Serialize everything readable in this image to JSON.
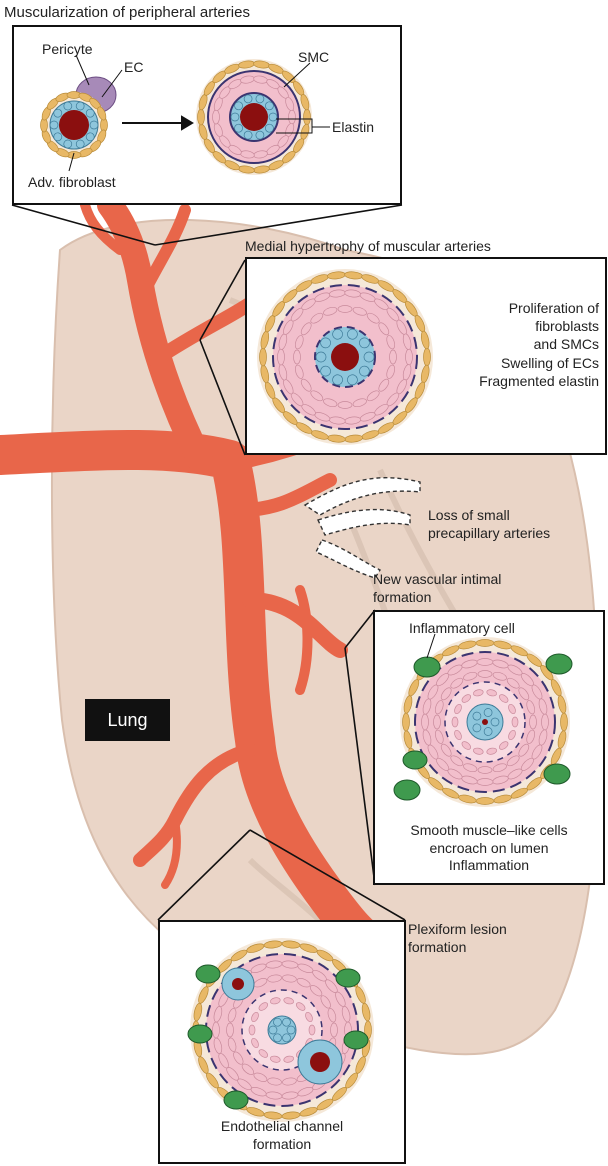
{
  "title": "Muscularization of peripheral arteries",
  "panel1": {
    "pericyte_label": "Pericyte",
    "ec_label": "EC",
    "fibroblast_label": "Adv. fibroblast",
    "smc_label": "SMC",
    "elastin_label": "Elastin"
  },
  "panel2": {
    "heading": "Medial hypertrophy of muscular arteries",
    "notes": [
      "Proliferation of",
      "fibroblasts",
      "and SMCs",
      "Swelling of ECs",
      "Fragmented elastin"
    ]
  },
  "loss_label": [
    "Loss of small",
    "precapillary arteries"
  ],
  "panel3": {
    "heading": [
      "New vascular intimal",
      "formation"
    ],
    "inflammatory_label": "Inflammatory cell",
    "notes": [
      "Smooth muscle–like cells",
      "encroach on lumen",
      "Inflammation"
    ]
  },
  "lung_label": "Lung",
  "plexiform_label": [
    "Plexiform lesion",
    "formation"
  ],
  "panel4": {
    "notes": [
      "Endothelial channel",
      "formation"
    ]
  },
  "colors": {
    "artery": "#e8664a",
    "lung": "#ead5c7",
    "fibroblast": "#e8b866",
    "smc": "#f2bfcc",
    "ec": "#8ec6dc",
    "lumen": "#8b0f0f",
    "elastin": "#3b3470",
    "pericyte": "#a78ab8",
    "inflammatory": "#3f9a4e"
  }
}
